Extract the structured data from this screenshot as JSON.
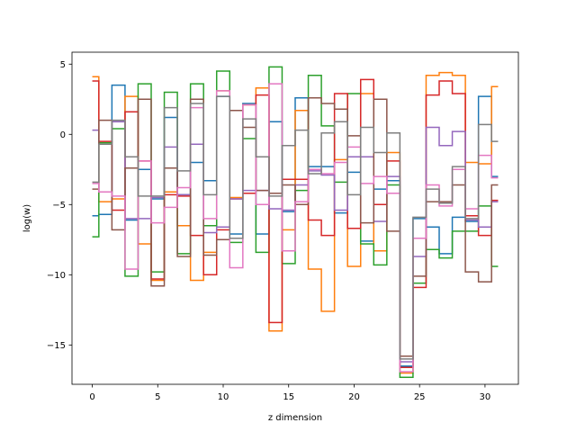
{
  "chart_data": {
    "type": "line",
    "drawstyle": "steps-mid",
    "xlabel": "z dimension",
    "ylabel": "log(w)",
    "xlim": [
      -1.55,
      32.55
    ],
    "ylim": [
      -17.8,
      5.85
    ],
    "xticks": [
      0,
      5,
      10,
      15,
      20,
      25,
      30
    ],
    "yticks": [
      5,
      0,
      -5,
      -10,
      -15
    ],
    "ytick_labels": [
      "5",
      "0",
      "−5",
      "−10",
      "−15"
    ],
    "grid": false,
    "x": [
      0,
      1,
      2,
      3,
      4,
      5,
      6,
      7,
      8,
      9,
      10,
      11,
      12,
      13,
      14,
      15,
      16,
      17,
      18,
      19,
      20,
      21,
      22,
      23,
      24,
      25,
      26,
      27,
      28,
      29,
      30,
      31
    ],
    "series": [
      {
        "color": "#1f77b4",
        "values": [
          -5.8,
          -5.7,
          3.5,
          -6.1,
          -2.5,
          -4.6,
          1.2,
          -4.3,
          -2.0,
          -3.3,
          2.7,
          -7.1,
          2.2,
          -7.1,
          0.9,
          -5.5,
          2.6,
          -2.3,
          -2.3,
          -5.6,
          -2.7,
          -7.6,
          -3.9,
          -3.3,
          -16.5,
          -6.0,
          -6.6,
          -8.5,
          -5.9,
          -6.2,
          2.7,
          -3.0
        ]
      },
      {
        "color": "#ff7f0e",
        "values": [
          4.1,
          -4.8,
          -4.6,
          2.7,
          -7.8,
          -10.4,
          -4.1,
          -6.5,
          -10.4,
          -8.4,
          3.1,
          -4.5,
          2.1,
          3.3,
          -14.0,
          -6.8,
          1.7,
          -9.6,
          -12.6,
          -1.8,
          -9.4,
          2.9,
          -8.3,
          -1.3,
          -17.0,
          -7.4,
          4.2,
          4.4,
          4.2,
          -2.0,
          -2.1,
          3.4
        ]
      },
      {
        "color": "#2ca02c",
        "values": [
          -7.3,
          -0.6,
          0.4,
          -10.1,
          3.6,
          -9.8,
          3.0,
          -8.5,
          3.6,
          -6.5,
          4.5,
          -7.7,
          -0.3,
          -8.4,
          4.8,
          -9.2,
          -4.0,
          4.2,
          0.6,
          -3.4,
          2.9,
          -7.8,
          -9.3,
          -3.6,
          -17.3,
          -10.6,
          -8.2,
          -8.8,
          -6.9,
          -6.9,
          -5.1,
          -9.4
        ]
      },
      {
        "color": "#d62728",
        "values": [
          3.8,
          -0.5,
          -5.4,
          1.6,
          -1.9,
          -10.3,
          -4.3,
          -4.4,
          -7.2,
          -10.0,
          -6.8,
          -4.6,
          -4.2,
          2.8,
          -13.4,
          -3.2,
          -3.2,
          -6.1,
          -7.2,
          2.9,
          -6.7,
          3.9,
          -5.0,
          -1.9,
          -16.6,
          -10.9,
          2.8,
          3.8,
          2.9,
          -5.8,
          -7.2,
          -4.7
        ]
      },
      {
        "color": "#9467bd",
        "values": [
          0.3,
          -4.1,
          0.9,
          -6.0,
          -6.0,
          -4.5,
          -0.9,
          -4.3,
          -0.7,
          -7.0,
          -6.6,
          -4.6,
          -4.0,
          -4.0,
          -5.3,
          -5.4,
          -3.6,
          -2.6,
          -2.9,
          -5.4,
          -1.6,
          -1.6,
          -6.2,
          -3.0,
          -16.2,
          -8.7,
          0.5,
          -0.8,
          0.2,
          -6.1,
          -6.6,
          -4.8
        ]
      },
      {
        "color": "#8c564b",
        "values": [
          -3.9,
          1.0,
          -6.8,
          -2.4,
          2.5,
          -10.8,
          -2.4,
          -8.7,
          2.5,
          -8.6,
          -7.5,
          1.7,
          0.5,
          -4.0,
          -4.2,
          -3.6,
          -5.0,
          2.6,
          2.2,
          1.8,
          -0.1,
          -6.3,
          2.5,
          -6.9,
          -15.8,
          -10.1,
          -4.8,
          -4.8,
          -3.6,
          -9.8,
          -10.5,
          -3.6
        ]
      },
      {
        "color": "#e377c2",
        "values": [
          -3.5,
          -4.1,
          -4.4,
          -9.6,
          -1.9,
          -6.3,
          -5.2,
          -3.8,
          1.9,
          -6.0,
          3.1,
          -9.5,
          2.1,
          -5.0,
          3.6,
          -8.3,
          -4.8,
          -2.5,
          -2.8,
          -2.0,
          -0.9,
          -3.5,
          -3.0,
          -4.2,
          -16.9,
          -7.4,
          -3.6,
          -5.1,
          -2.5,
          -5.3,
          -1.5,
          -3.1
        ]
      },
      {
        "color": "#7f7f7f",
        "values": [
          -3.4,
          -0.7,
          1.0,
          -1.6,
          -4.4,
          -4.4,
          1.9,
          -2.6,
          2.2,
          -4.3,
          2.7,
          -7.4,
          1.1,
          -1.6,
          -4.4,
          -0.8,
          0.3,
          -2.8,
          0.1,
          0.9,
          -4.3,
          0.5,
          -1.3,
          0.1,
          -16.0,
          -5.9,
          -3.9,
          -4.9,
          -2.3,
          -6.0,
          0.7,
          -0.5
        ]
      }
    ]
  }
}
